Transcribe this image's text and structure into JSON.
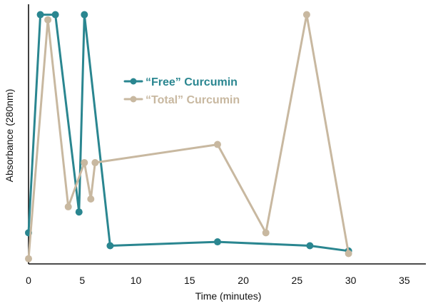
{
  "chart_data": {
    "type": "line",
    "title": "",
    "xlabel": "Time (minutes)",
    "ylabel": "Absorbance (280nm)",
    "xlim": [
      0,
      37
    ],
    "ylim": [
      0,
      1
    ],
    "xticks": [
      0,
      5,
      10,
      15,
      20,
      25,
      30,
      35
    ],
    "xtick_labels": [
      "0",
      "5",
      "10",
      "15",
      "20",
      "25",
      "30",
      "35"
    ],
    "ytick_labels": [],
    "grid": false,
    "legend_position": "center-left",
    "series": [
      {
        "name": "“Free” Curcumin",
        "color": "#2a8690",
        "points": [
          {
            "x": 0,
            "y": 0.12
          },
          {
            "x": 1.1,
            "y": 0.96
          },
          {
            "x": 2.5,
            "y": 0.96
          },
          {
            "x": 4.7,
            "y": 0.2
          },
          {
            "x": 5.2,
            "y": 0.96
          },
          {
            "x": 7.6,
            "y": 0.07
          },
          {
            "x": 17.6,
            "y": 0.085
          },
          {
            "x": 26.2,
            "y": 0.07
          },
          {
            "x": 29.8,
            "y": 0.05
          }
        ]
      },
      {
        "name": "“Total” Curcumin",
        "color": "#c8b8a0",
        "points": [
          {
            "x": 0,
            "y": 0.02
          },
          {
            "x": 1.8,
            "y": 0.94
          },
          {
            "x": 3.7,
            "y": 0.22
          },
          {
            "x": 5.2,
            "y": 0.39
          },
          {
            "x": 5.8,
            "y": 0.25
          },
          {
            "x": 6.2,
            "y": 0.39
          },
          {
            "x": 17.6,
            "y": 0.46
          },
          {
            "x": 22.1,
            "y": 0.12
          },
          {
            "x": 25.9,
            "y": 0.96
          },
          {
            "x": 29.8,
            "y": 0.04
          }
        ]
      }
    ]
  }
}
